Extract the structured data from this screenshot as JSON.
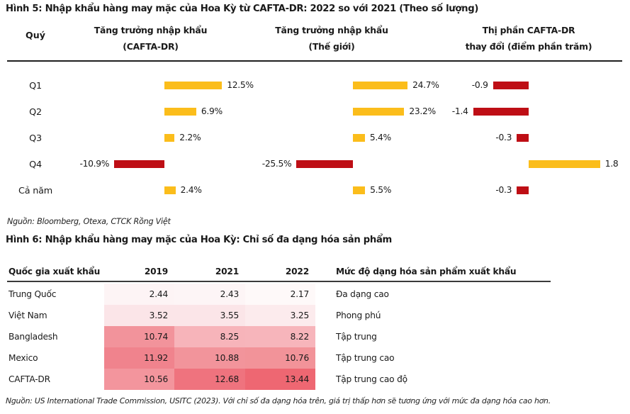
{
  "fig5": {
    "title": "Hình 5: Nhập khẩu hàng may mặc của Hoa Kỳ từ CAFTA-DR: 2022 so với 2021 (Theo số lượng)",
    "quarter_header": "Quý",
    "headers": {
      "col1_line1": "Tăng trưởng nhập khẩu",
      "col1_line2": "(CAFTA-DR)",
      "col2_line1": "Tăng trưởng nhập khẩu",
      "col2_line2": "(Thế giới)",
      "col3_line1": "Thị phần CAFTA-DR",
      "col3_line2": "thay đổi (điểm phần trăm)"
    },
    "source": "Nguồn: Bloomberg, Otexa, CTCK Rồng Việt"
  },
  "fig6": {
    "title": "Hình 6: Nhập khẩu hàng may mặc của Hoa Kỳ: Chỉ số đa dạng hóa sản phẩm",
    "source": "Nguồn: US International Trade Commission, USITC (2023). Với chỉ số đa dạng hóa trên, giá trị thấp hơn sẽ tương ứng với mức đa dạng hóa cao hơn."
  },
  "chart_data": [
    {
      "type": "bar",
      "orientation": "horizontal",
      "title": "Hình 5: Nhập khẩu hàng may mặc của Hoa Kỳ từ CAFTA-DR: 2022 so với 2021 (Theo số lượng)",
      "categories": [
        "Q1",
        "Q2",
        "Q3",
        "Q4",
        "Cả năm"
      ],
      "series": [
        {
          "name": "Tăng trưởng nhập khẩu (CAFTA-DR)",
          "unit": "%",
          "values": [
            12.5,
            6.9,
            2.2,
            -10.9,
            2.4
          ],
          "labels": [
            "12.5%",
            "6.9%",
            "2.2%",
            "-10.9%",
            "2.4%"
          ]
        },
        {
          "name": "Tăng trưởng nhập khẩu (Thế giới)",
          "unit": "%",
          "values": [
            24.7,
            23.2,
            5.4,
            -25.5,
            5.5
          ],
          "labels": [
            "24.7%",
            "23.2%",
            "5.4%",
            "-25.5%",
            "5.5%"
          ]
        },
        {
          "name": "Thị phần CAFTA-DR thay đổi (điểm phần trăm)",
          "unit": "điểm phần trăm",
          "values": [
            -0.9,
            -1.4,
            -0.3,
            1.8,
            -0.3
          ],
          "labels": [
            "-0.9",
            "-1.4",
            "-0.3",
            "1.8",
            "-0.3"
          ]
        }
      ],
      "positive_color": "#FBBD1B",
      "negative_color": "#BE0E15",
      "value_labels": true,
      "grid": false,
      "legend": false
    },
    {
      "type": "heatmap",
      "title": "Hình 6: Nhập khẩu hàng may mặc của Hoa Kỳ: Chỉ số đa dạng hóa sản phẩm",
      "row_header": "Quốc gia xuất khẩu",
      "columns": [
        "2019",
        "2021",
        "2022"
      ],
      "status_header": "Mức độ dạng hóa sản phẩm xuất khẩu",
      "rows": [
        {
          "label": "Trung Quốc",
          "values": [
            2.44,
            2.43,
            2.17
          ],
          "colors": [
            "#FDF4F5",
            "#FDF5F6",
            "#FEF9F9"
          ],
          "status": "Đa dạng cao"
        },
        {
          "label": "Việt Nam",
          "values": [
            3.52,
            3.55,
            3.25
          ],
          "colors": [
            "#FBE5E8",
            "#FBE5E8",
            "#FCEBED"
          ],
          "status": "Phong phú"
        },
        {
          "label": "Bangladesh",
          "values": [
            10.74,
            8.25,
            8.22
          ],
          "colors": [
            "#F2939B",
            "#F7B4BA",
            "#F7B5BB"
          ],
          "status": "Tập trung"
        },
        {
          "label": "Mexico",
          "values": [
            11.92,
            10.88,
            10.76
          ],
          "colors": [
            "#F0838D",
            "#F2949B",
            "#F29399"
          ],
          "status": "Tập trung cao"
        },
        {
          "label": "CAFTA-DR",
          "values": [
            10.56,
            12.68,
            13.44
          ],
          "colors": [
            "#F3959D",
            "#EF737E",
            "#EE6772"
          ],
          "status": "Tập trung cao độ"
        }
      ],
      "color_scale_note": "lower value = lighter, higher value = darker red"
    }
  ]
}
